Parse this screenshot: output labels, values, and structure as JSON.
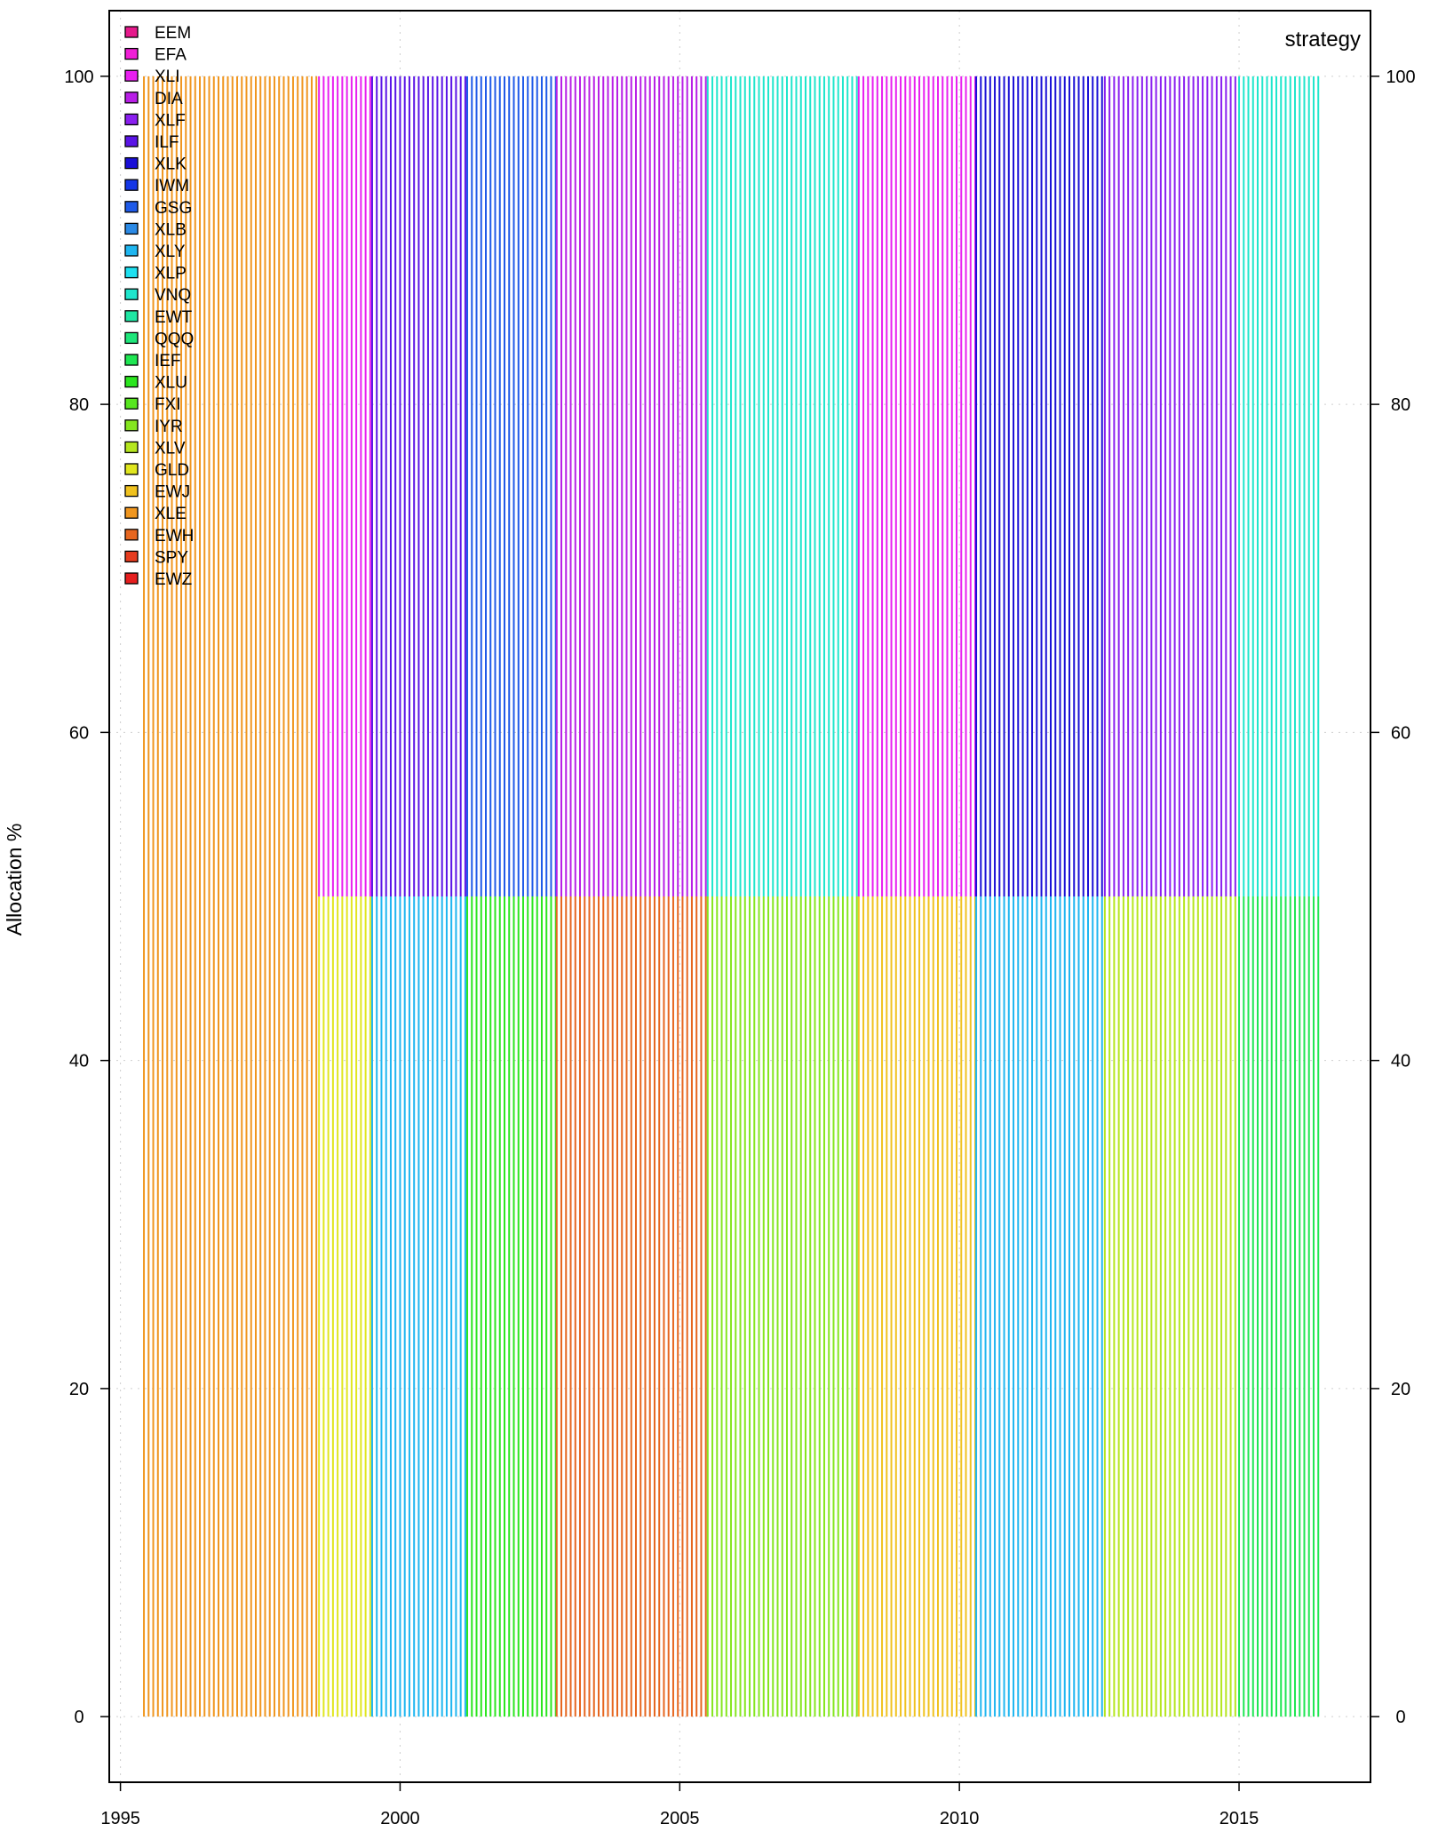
{
  "chart_data": {
    "type": "area",
    "title": "strategy",
    "ylabel": "Allocation %",
    "xlabel": "",
    "xlim": [
      1994.8,
      2017.35
    ],
    "ylim": [
      -4,
      104
    ],
    "x_ticks": [
      1995,
      2000,
      2005,
      2010,
      2015
    ],
    "y_ticks": [
      0,
      20,
      40,
      60,
      80,
      100
    ],
    "grid": true,
    "legend_position": "top-left",
    "legend": [
      {
        "name": "EEM",
        "color": "#e6198c"
      },
      {
        "name": "EFA",
        "color": "#f01fd6"
      },
      {
        "name": "XLI",
        "color": "#e81ff0"
      },
      {
        "name": "DIA",
        "color": "#b81fe6"
      },
      {
        "name": "XLF",
        "color": "#8a1ff0"
      },
      {
        "name": "ILF",
        "color": "#5a14e6"
      },
      {
        "name": "XLK",
        "color": "#1a0fd6"
      },
      {
        "name": "IWM",
        "color": "#1436e6"
      },
      {
        "name": "GSG",
        "color": "#1f5ae8"
      },
      {
        "name": "XLB",
        "color": "#2b8ae6"
      },
      {
        "name": "XLY",
        "color": "#1fb6f0"
      },
      {
        "name": "XLP",
        "color": "#1fe0f0"
      },
      {
        "name": "VNQ",
        "color": "#1fe6cc"
      },
      {
        "name": "EWT",
        "color": "#1fe6a3"
      },
      {
        "name": "QQQ",
        "color": "#1fe67a"
      },
      {
        "name": "IEF",
        "color": "#1fe652"
      },
      {
        "name": "XLU",
        "color": "#2be61f"
      },
      {
        "name": "FXI",
        "color": "#57e61f"
      },
      {
        "name": "IYR",
        "color": "#85e61f"
      },
      {
        "name": "XLV",
        "color": "#b5e61f"
      },
      {
        "name": "GLD",
        "color": "#e0e61f"
      },
      {
        "name": "EWJ",
        "color": "#f0c21f"
      },
      {
        "name": "XLE",
        "color": "#f0961f"
      },
      {
        "name": "EWH",
        "color": "#e6661f"
      },
      {
        "name": "SPY",
        "color": "#e63c1f"
      },
      {
        "name": "EWZ",
        "color": "#e61f1f"
      }
    ],
    "periods": [
      {
        "start": 1995.42,
        "end": 1998.55,
        "lower": "XLE",
        "upper": "XLE",
        "split": 100
      },
      {
        "start": 1998.55,
        "end": 1999.5,
        "lower": "GLD",
        "upper": "XLI",
        "split": 50
      },
      {
        "start": 1999.5,
        "end": 2001.2,
        "lower": "XLY",
        "upper": "ILF",
        "split": 50
      },
      {
        "start": 2001.2,
        "end": 2002.8,
        "lower": "XLU",
        "upper": "GSG",
        "split": 50
      },
      {
        "start": 2002.8,
        "end": 2005.5,
        "lower": "EWH",
        "upper": "DIA",
        "split": 50
      },
      {
        "start": 2005.5,
        "end": 2008.2,
        "lower": "IYR",
        "upper": "VNQ",
        "split": 50
      },
      {
        "start": 2008.2,
        "end": 2010.3,
        "lower": "EWJ",
        "upper": "XLI",
        "split": 50
      },
      {
        "start": 2010.3,
        "end": 2012.6,
        "lower": "XLY",
        "upper": "XLK",
        "split": 50
      },
      {
        "start": 2012.6,
        "end": 2015.0,
        "lower": "XLV",
        "upper": "XLF",
        "split": 50
      },
      {
        "start": 2015.0,
        "end": 2016.45,
        "lower": "IEF",
        "upper": "VNQ",
        "split": 50
      }
    ]
  }
}
